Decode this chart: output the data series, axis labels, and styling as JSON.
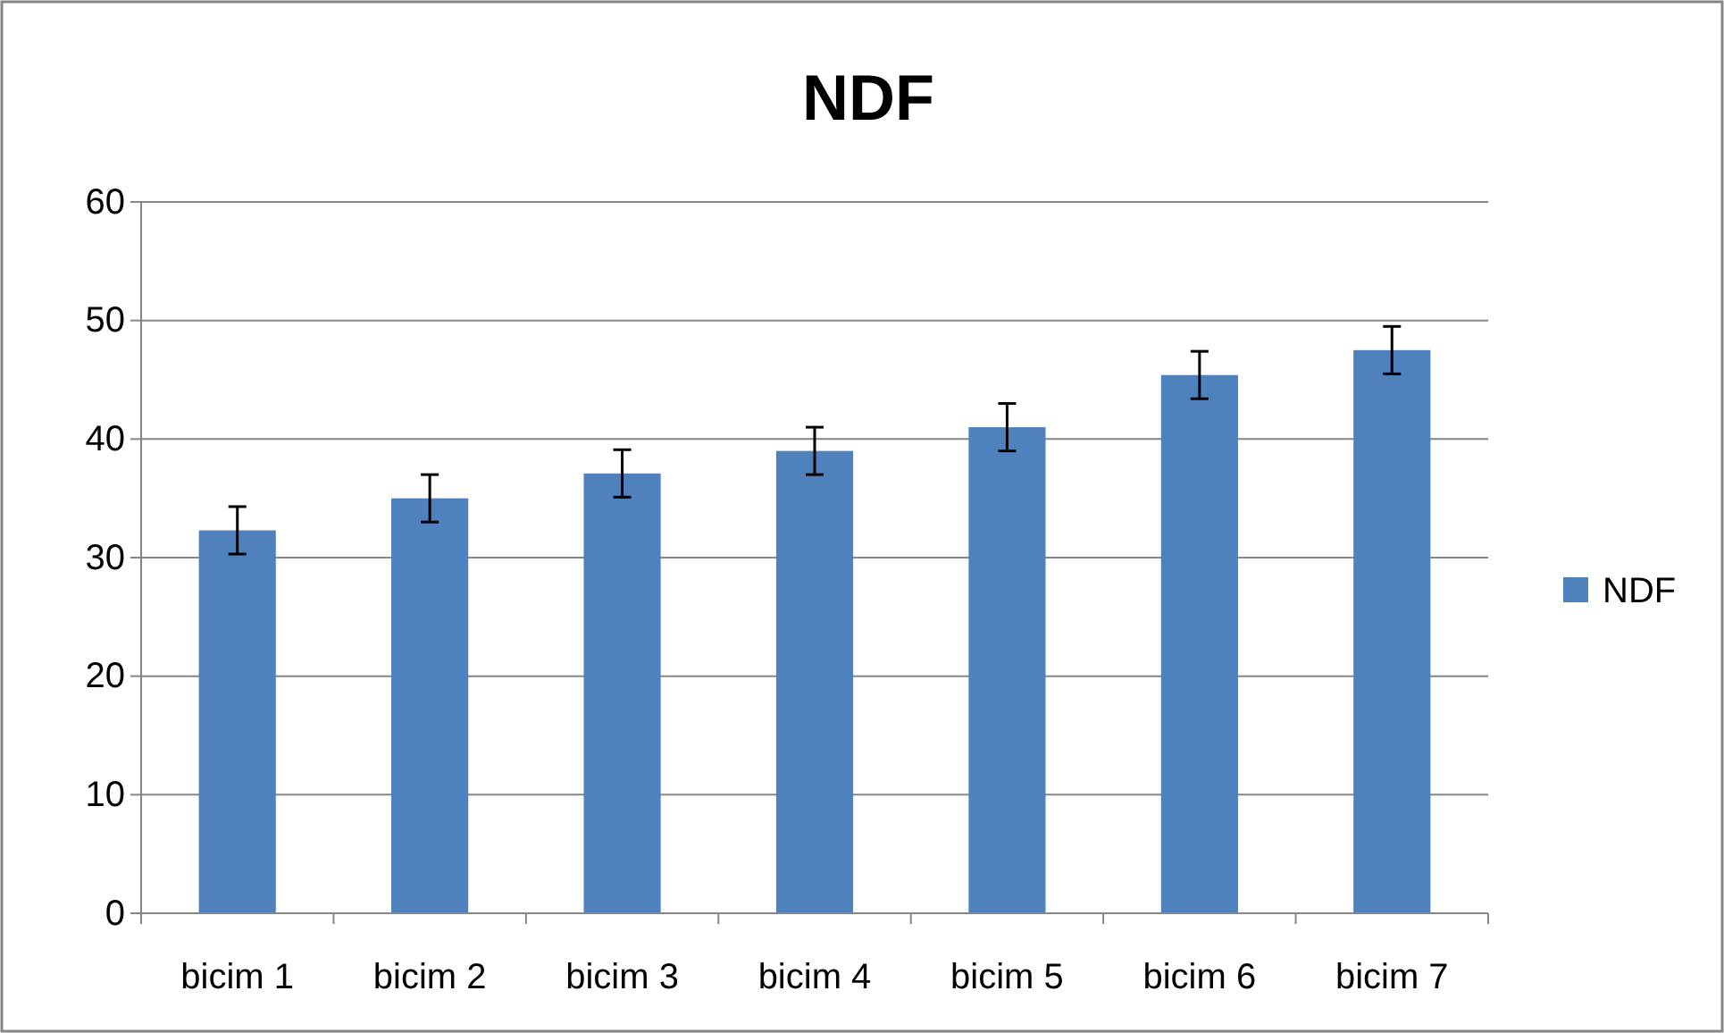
{
  "chart_data": {
    "type": "bar",
    "title": "NDF",
    "categories": [
      "bicim 1",
      "bicim 2",
      "bicim 3",
      "bicim 4",
      "bicim 5",
      "bicim 6",
      "bicim 7"
    ],
    "series": [
      {
        "name": "NDF",
        "color": "#4f81bd",
        "values": [
          32.3,
          35.0,
          37.1,
          39.0,
          41.0,
          45.4,
          47.5
        ],
        "errors": [
          2,
          2,
          2,
          2,
          2,
          2,
          2
        ]
      }
    ],
    "ylim": [
      0,
      60
    ],
    "yticks": [
      0,
      10,
      20,
      30,
      40,
      50,
      60
    ],
    "grid": "y",
    "legend": "right"
  }
}
